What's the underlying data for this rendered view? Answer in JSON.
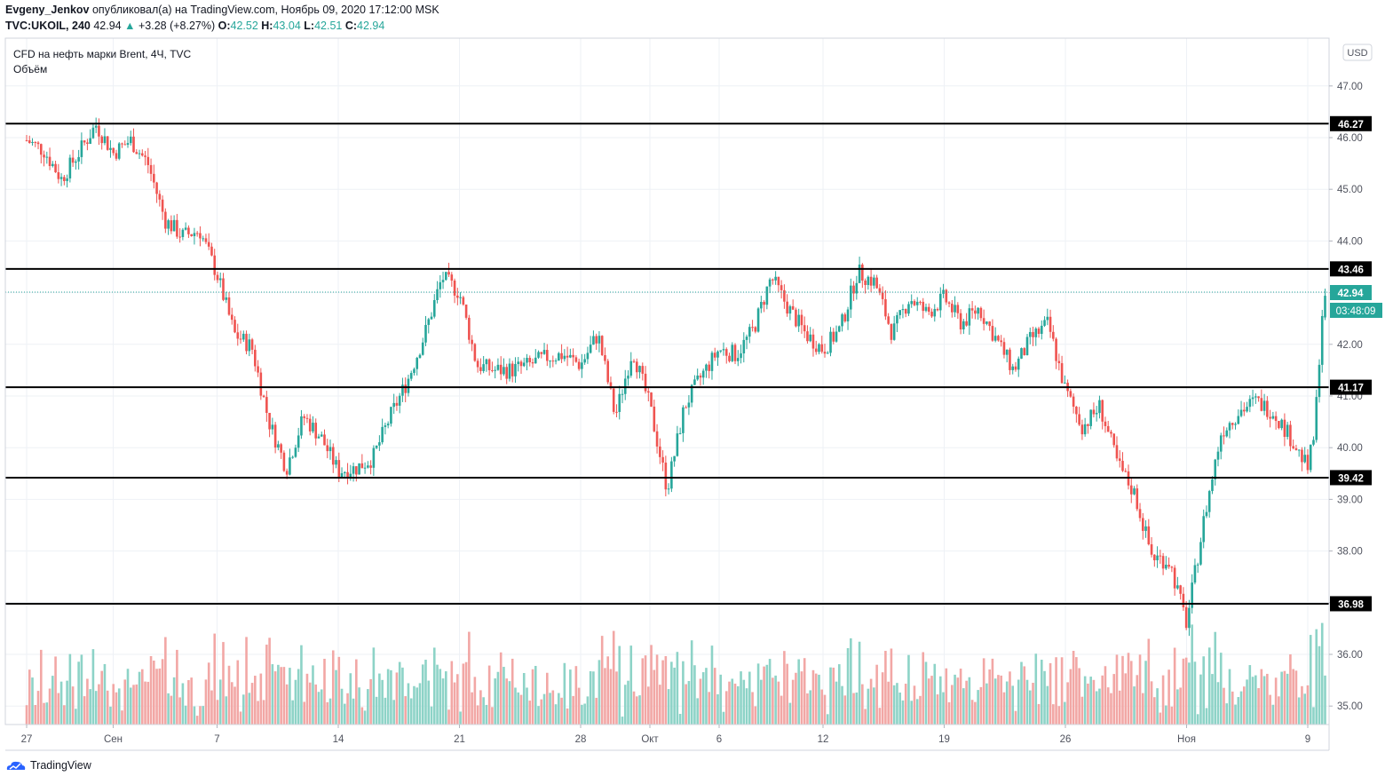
{
  "header": {
    "author": "Evgeny_Jenkov",
    "published_text": "опубликовал(а) на TradingView.com, Ноябрь 09, 2020 17:12:00 MSK",
    "symbol": "TVC:UKOIL, 240",
    "last": "42.94",
    "change_arrow": "▲",
    "change": "+3.28 (+8.27%)",
    "o_label": "O:",
    "o_value": "42.52",
    "h_label": "H:",
    "h_value": "43.04",
    "l_label": "L:",
    "l_value": "42.51",
    "c_label": "C:",
    "c_value": "42.94"
  },
  "legend": {
    "title": "CFD на нефть марки Brent, 4Ч, TVC",
    "volume_label": "Объём"
  },
  "currency": "USD",
  "footer": {
    "brand": "TradingView"
  },
  "colors": {
    "up": "#26a69a",
    "down": "#ef5350",
    "vol_up": "#8dd3c7",
    "vol_down": "#f2a7a5",
    "line": "#000000",
    "grid": "#eef1f6"
  },
  "chart_data": {
    "type": "candlestick",
    "title": "CFD на нефть марки Brent, 4Ч, TVC",
    "ylim": [
      34.7,
      47.6
    ],
    "y_ticks": [
      "35.00",
      "36.00",
      "37.00",
      "38.00",
      "39.00",
      "40.00",
      "41.00",
      "42.00",
      "43.00",
      "44.00",
      "45.00",
      "46.00",
      "47.00"
    ],
    "x_ticks": [
      {
        "label": "27",
        "day": 0
      },
      {
        "label": "Сен",
        "day": 5
      },
      {
        "label": "7",
        "day": 11
      },
      {
        "label": "14",
        "day": 18
      },
      {
        "label": "21",
        "day": 25
      },
      {
        "label": "28",
        "day": 32
      },
      {
        "label": "Окт",
        "day": 36
      },
      {
        "label": "6",
        "day": 40
      },
      {
        "label": "12",
        "day": 46
      },
      {
        "label": "19",
        "day": 53
      },
      {
        "label": "26",
        "day": 60
      },
      {
        "label": "Ноя",
        "day": 67
      },
      {
        "label": "9",
        "day": 74
      }
    ],
    "horizontal_levels": [
      "46.27",
      "43.46",
      "41.17",
      "39.42",
      "36.98"
    ],
    "last_price_label": "42.94",
    "countdown_label": "03:48:09",
    "close_path": [
      [
        0,
        45.95
      ],
      [
        1,
        45.75
      ],
      [
        2,
        45.2
      ],
      [
        3,
        45.7
      ],
      [
        4,
        46.25
      ],
      [
        5,
        45.7
      ],
      [
        6,
        45.95
      ],
      [
        7,
        45.5
      ],
      [
        8,
        44.4
      ],
      [
        9,
        44.1
      ],
      [
        10,
        44.2
      ],
      [
        11,
        43.35
      ],
      [
        12,
        42.2
      ],
      [
        13,
        41.95
      ],
      [
        14,
        40.5
      ],
      [
        15,
        39.6
      ],
      [
        16,
        40.6
      ],
      [
        17,
        40.2
      ],
      [
        18,
        39.55
      ],
      [
        19,
        39.6
      ],
      [
        20,
        39.8
      ],
      [
        21,
        40.6
      ],
      [
        22,
        41.3
      ],
      [
        23,
        42.2
      ],
      [
        24,
        43.3
      ],
      [
        25,
        43.0
      ],
      [
        26,
        41.6
      ],
      [
        27,
        41.5
      ],
      [
        28,
        41.5
      ],
      [
        29,
        41.6
      ],
      [
        30,
        41.75
      ],
      [
        31,
        41.8
      ],
      [
        32,
        41.6
      ],
      [
        33,
        42.2
      ],
      [
        34,
        40.6
      ],
      [
        35,
        41.9
      ],
      [
        36,
        40.8
      ],
      [
        37,
        39.2
      ],
      [
        38,
        40.8
      ],
      [
        39,
        41.4
      ],
      [
        40,
        41.9
      ],
      [
        41,
        41.8
      ],
      [
        42,
        42.3
      ],
      [
        43,
        43.3
      ],
      [
        44,
        42.7
      ],
      [
        45,
        42.2
      ],
      [
        46,
        41.9
      ],
      [
        47,
        42.3
      ],
      [
        48,
        43.4
      ],
      [
        49,
        43.2
      ],
      [
        50,
        42.2
      ],
      [
        51,
        42.9
      ],
      [
        52,
        42.6
      ],
      [
        53,
        42.9
      ],
      [
        54,
        42.4
      ],
      [
        55,
        42.7
      ],
      [
        56,
        42.1
      ],
      [
        57,
        41.5
      ],
      [
        58,
        42.1
      ],
      [
        59,
        42.4
      ],
      [
        60,
        41.1
      ],
      [
        61,
        40.4
      ],
      [
        62,
        40.8
      ],
      [
        63,
        39.7
      ],
      [
        64,
        39.1
      ],
      [
        65,
        37.9
      ],
      [
        66,
        37.8
      ],
      [
        67,
        36.6
      ],
      [
        68,
        38.6
      ],
      [
        69,
        40.3
      ],
      [
        70,
        40.7
      ],
      [
        71,
        40.9
      ],
      [
        72,
        40.7
      ],
      [
        73,
        40.2
      ],
      [
        74,
        39.6
      ],
      [
        74.4,
        40.3
      ],
      [
        74.8,
        42.52
      ],
      [
        75,
        42.94
      ]
    ]
  }
}
